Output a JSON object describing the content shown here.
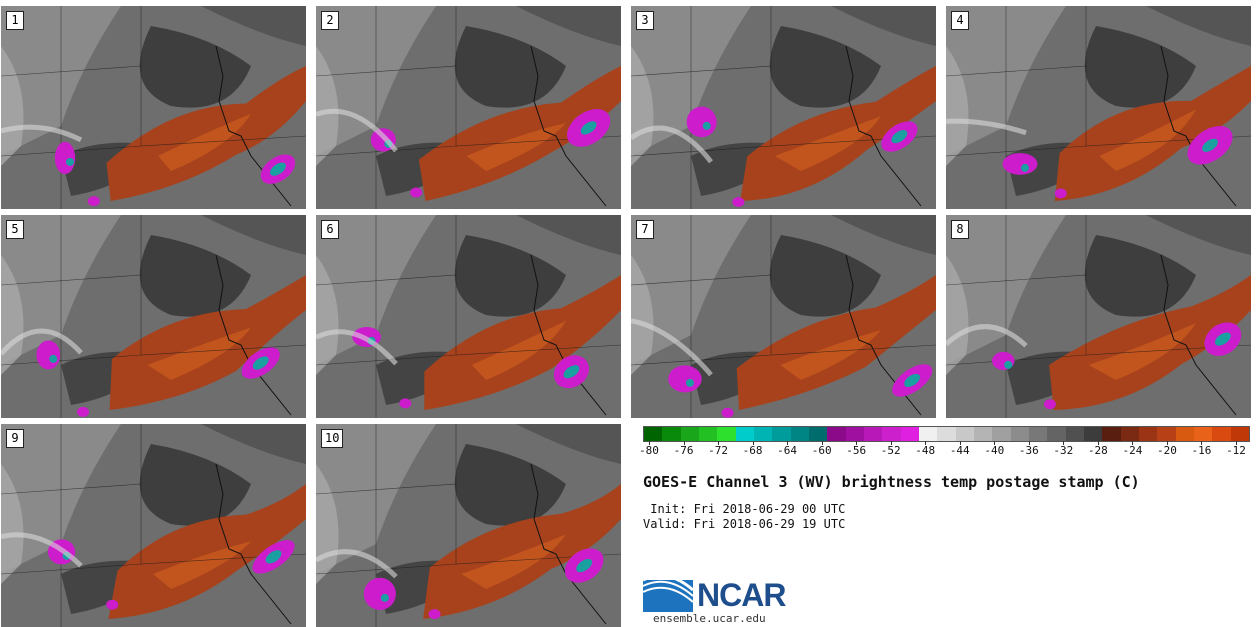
{
  "panels": [
    {
      "label": "1"
    },
    {
      "label": "2"
    },
    {
      "label": "3"
    },
    {
      "label": "4"
    },
    {
      "label": "5"
    },
    {
      "label": "6"
    },
    {
      "label": "7"
    },
    {
      "label": "8"
    },
    {
      "label": "9"
    },
    {
      "label": "10"
    }
  ],
  "colorbar": {
    "colors": [
      "#006400",
      "#0a8a0a",
      "#1aa61a",
      "#22c022",
      "#2ee02e",
      "#00cccc",
      "#00b4b4",
      "#009c9c",
      "#008484",
      "#006c6c",
      "#8a0a8a",
      "#a010a0",
      "#b818b8",
      "#cc20cc",
      "#e020e0",
      "#f0f0f0",
      "#dcdcdc",
      "#c8c8c8",
      "#b4b4b4",
      "#a0a0a0",
      "#8c8c8c",
      "#787878",
      "#646464",
      "#505050",
      "#3c3c3c",
      "#5a1e10",
      "#7a2a12",
      "#9a3414",
      "#b84016",
      "#d85a10",
      "#e8621a",
      "#d84a10",
      "#c03808"
    ],
    "ticks": [
      "-80",
      "-76",
      "-72",
      "-68",
      "-64",
      "-60",
      "-56",
      "-52",
      "-48",
      "-44",
      "-40",
      "-36",
      "-32",
      "-28",
      "-24",
      "-20",
      "-16",
      "-12"
    ]
  },
  "title": "GOES-E Channel 3 (WV) brightness temp postage stamp (C)",
  "init": " Init: Fri 2018-06-29 00 UTC",
  "valid": "Valid: Fri 2018-06-29 19 UTC",
  "logo": {
    "text": "NCAR",
    "site": "ensemble.ucar.edu"
  },
  "palette": {
    "dry_brown": "#a8421c",
    "cold_magenta": "#cc1ccc",
    "cold_teal": "#1aa0a0",
    "background_gray": "#6b6b6b"
  }
}
